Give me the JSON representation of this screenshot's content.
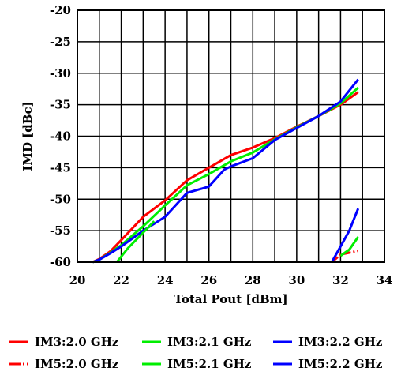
{
  "chart_data": {
    "type": "line",
    "title": "",
    "xlabel": "Total  Pout  [dBm]",
    "ylabel": "IMD  [dBc]",
    "xlim": [
      20,
      34
    ],
    "ylim": [
      -60,
      -20
    ],
    "x_ticks": [
      "20",
      "22",
      "24",
      "26",
      "28",
      "30",
      "32",
      "34"
    ],
    "y_ticks": [
      "-20",
      "-25",
      "-30",
      "-35",
      "-40",
      "-45",
      "-50",
      "-55",
      "-60"
    ],
    "grid": true,
    "legend_position": "bottom",
    "series": [
      {
        "name": "IM3:2.0 GHz",
        "color": "#ff0000",
        "dash": "solid",
        "points": [
          [
            20.7,
            -60
          ],
          [
            21,
            -59.5
          ],
          [
            21.5,
            -58.3
          ],
          [
            22,
            -56.5
          ],
          [
            23,
            -52.8
          ],
          [
            24,
            -50.2
          ],
          [
            25,
            -47
          ],
          [
            26,
            -45
          ],
          [
            27,
            -43
          ],
          [
            28,
            -41.8
          ],
          [
            29,
            -40.3
          ],
          [
            30,
            -38.5
          ],
          [
            31,
            -36.8
          ],
          [
            32,
            -35
          ],
          [
            32.8,
            -33
          ]
        ]
      },
      {
        "name": "IM3:2.1 GHz",
        "color": "#00ee00",
        "dash": "solid",
        "points": [
          [
            20.7,
            -60
          ],
          [
            21,
            -59.6
          ],
          [
            21.5,
            -58.5
          ],
          [
            22,
            -57.3
          ],
          [
            23,
            -54.3
          ],
          [
            24,
            -51
          ],
          [
            25,
            -47.8
          ],
          [
            26,
            -46
          ],
          [
            27,
            -44
          ],
          [
            28,
            -42.6
          ],
          [
            29,
            -40.5
          ],
          [
            30,
            -38.6
          ],
          [
            31,
            -36.8
          ],
          [
            32,
            -34.8
          ],
          [
            32.8,
            -32.3
          ]
        ]
      },
      {
        "name": "IM3:2.2 GHz",
        "color": "#0000ff",
        "dash": "solid",
        "points": [
          [
            20.7,
            -60
          ],
          [
            21,
            -59.6
          ],
          [
            21.5,
            -58.6
          ],
          [
            22,
            -57.5
          ],
          [
            23,
            -55
          ],
          [
            24,
            -52.8
          ],
          [
            25,
            -49
          ],
          [
            26,
            -48
          ],
          [
            26.7,
            -45.3
          ],
          [
            27,
            -44.8
          ],
          [
            28,
            -43.5
          ],
          [
            29,
            -40.6
          ],
          [
            30,
            -38.7
          ],
          [
            31,
            -36.8
          ],
          [
            32,
            -34.5
          ],
          [
            32.8,
            -31
          ]
        ]
      },
      {
        "name": "IM5:2.0 GHz",
        "color": "#ff0000",
        "dash": "dashdot",
        "points": [
          [
            31.6,
            -60
          ],
          [
            32,
            -58.8
          ],
          [
            32.4,
            -58.5
          ],
          [
            32.8,
            -58.2
          ]
        ]
      },
      {
        "name": "IM5:2.1 GHz",
        "color": "#00ee00",
        "dash": "solid",
        "points": [
          [
            21.8,
            -60
          ],
          [
            22.3,
            -57.8
          ],
          [
            23,
            -55.3
          ],
          [
            23.5,
            -53.5
          ]
        ],
        "points2": [
          [
            32,
            -59
          ],
          [
            32.4,
            -58
          ],
          [
            32.8,
            -56
          ]
        ]
      },
      {
        "name": "IM5:2.2 GHz",
        "color": "#0000ff",
        "dash": "solid",
        "points": [
          [
            31.6,
            -60
          ],
          [
            32,
            -57.5
          ],
          [
            32.4,
            -55
          ],
          [
            32.8,
            -51.5
          ]
        ]
      }
    ]
  }
}
